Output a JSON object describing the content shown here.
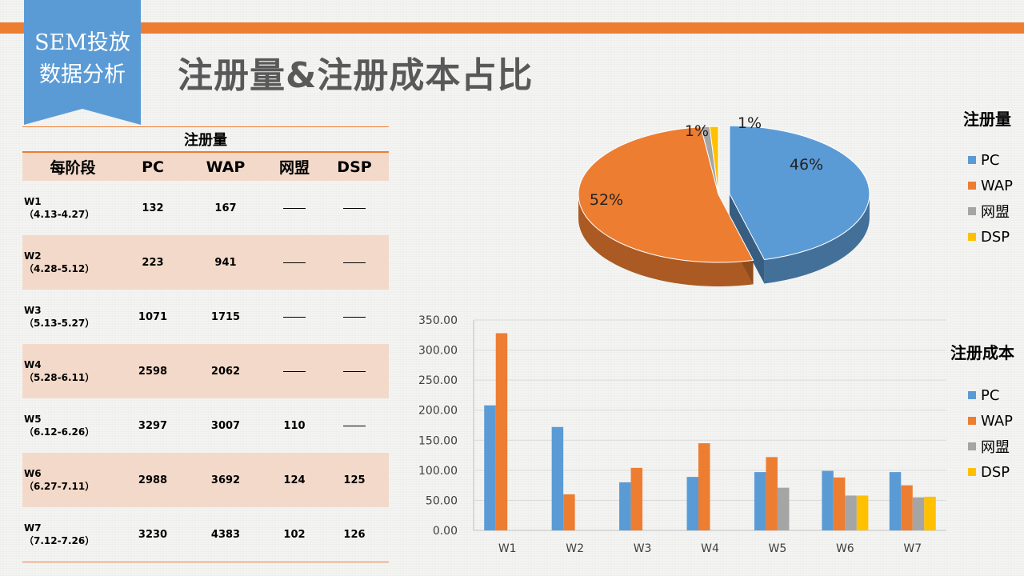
{
  "header": {
    "badge_line1": "SEM投放",
    "badge_line2": "数据分析",
    "title": "注册量&注册成本占比"
  },
  "colors": {
    "accent": "#ed7d31",
    "ribbon": "#5b9bd5",
    "row_shade": "#f3d9c9",
    "title_gray": "#595959"
  },
  "table": {
    "caption": "注册量",
    "headers": [
      "每阶段",
      "PC",
      "WAP",
      "网盟",
      "DSP"
    ],
    "rows": [
      {
        "code": "W1",
        "range": "（4.13-4.27）",
        "pc": "132",
        "wap": "167",
        "wm": "——",
        "dsp": "——"
      },
      {
        "code": "W2",
        "range": "（4.28-5.12）",
        "pc": "223",
        "wap": "941",
        "wm": "——",
        "dsp": "——"
      },
      {
        "code": "W3",
        "range": "（5.13-5.27）",
        "pc": "1071",
        "wap": "1715",
        "wm": "——",
        "dsp": "——"
      },
      {
        "code": "W4",
        "range": "（5.28-6.11）",
        "pc": "2598",
        "wap": "2062",
        "wm": "——",
        "dsp": "——"
      },
      {
        "code": "W5",
        "range": "（6.12-6.26）",
        "pc": "3297",
        "wap": "3007",
        "wm": "110",
        "dsp": "——"
      },
      {
        "code": "W6",
        "range": "（6.27-7.11）",
        "pc": "2988",
        "wap": "3692",
        "wm": "124",
        "dsp": "125"
      },
      {
        "code": "W7",
        "range": "（7.12-7.26）",
        "pc": "3230",
        "wap": "4383",
        "wm": "102",
        "dsp": "126"
      }
    ]
  },
  "chart_data": [
    {
      "type": "pie",
      "title": "注册量",
      "labels": [
        "PC",
        "WAP",
        "网盟",
        "DSP"
      ],
      "values": [
        46,
        52,
        1,
        1
      ],
      "data_labels": [
        "46%",
        "52%",
        "1%",
        "1%"
      ],
      "colors": [
        "#5b9bd5",
        "#ed7d31",
        "#a5a5a5",
        "#ffc000"
      ],
      "legend_position": "right",
      "style": "3d"
    },
    {
      "type": "bar",
      "title": "注册成本",
      "categories": [
        "W1",
        "W2",
        "W3",
        "W4",
        "W5",
        "W6",
        "W7"
      ],
      "series": [
        {
          "name": "PC",
          "color": "#5b9bd5",
          "values": [
            208,
            172,
            80,
            89,
            97,
            99,
            97
          ]
        },
        {
          "name": "WAP",
          "color": "#ed7d31",
          "values": [
            328,
            60,
            104,
            145,
            122,
            88,
            75
          ]
        },
        {
          "name": "网盟",
          "color": "#a5a5a5",
          "values": [
            null,
            null,
            null,
            null,
            71,
            58,
            55
          ]
        },
        {
          "name": "DSP",
          "color": "#ffc000",
          "values": [
            null,
            null,
            null,
            null,
            null,
            58,
            56
          ]
        }
      ],
      "y_ticks": [
        "0.00",
        "50.00",
        "100.00",
        "150.00",
        "200.00",
        "250.00",
        "300.00",
        "350.00"
      ],
      "ylim": [
        0,
        350
      ],
      "grid": true,
      "legend_position": "right"
    }
  ]
}
